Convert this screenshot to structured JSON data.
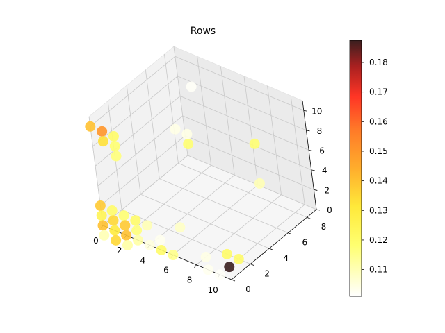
{
  "chart_data": {
    "type": "scatter",
    "title": "Rows",
    "xlabel": "",
    "ylabel": "",
    "zlabel": "",
    "xlim": [
      0,
      11
    ],
    "ylim": [
      0,
      9
    ],
    "zlim": [
      0,
      11
    ],
    "x_ticks": [
      "0",
      "2",
      "4",
      "6",
      "8",
      "10"
    ],
    "y_ticks": [
      "0",
      "2",
      "4",
      "6",
      "8"
    ],
    "z_ticks": [
      "0",
      "2",
      "4",
      "6",
      "8",
      "10"
    ],
    "grid": true,
    "colormap": "hot_r",
    "colorbar": {
      "min": 0.101,
      "max": 0.1875,
      "ticks": [
        "0.11",
        "0.12",
        "0.13",
        "0.14",
        "0.15",
        "0.16",
        "0.17",
        "0.18"
      ]
    },
    "points": [
      {
        "x": 0,
        "y": 0,
        "z": 10,
        "c": 0.14
      },
      {
        "x": 1,
        "y": 0,
        "z": 10,
        "c": 0.15
      },
      {
        "x": 1,
        "y": 0,
        "z": 9,
        "c": 0.133
      },
      {
        "x": 2,
        "y": 0,
        "z": 10,
        "c": 0.12
      },
      {
        "x": 2,
        "y": 0,
        "z": 9,
        "c": 0.118
      },
      {
        "x": 2,
        "y": 0,
        "z": 8,
        "c": 0.117
      },
      {
        "x": 0,
        "y": 0,
        "z": 2,
        "c": 0.138
      },
      {
        "x": 0,
        "y": 0,
        "z": 1,
        "c": 0.125
      },
      {
        "x": 0,
        "y": 0,
        "z": 0,
        "c": 0.14
      },
      {
        "x": 1,
        "y": 0,
        "z": 2,
        "c": 0.12
      },
      {
        "x": 1,
        "y": 0,
        "z": 1,
        "c": 0.135
      },
      {
        "x": 1,
        "y": 0,
        "z": 0,
        "c": 0.13
      },
      {
        "x": 2,
        "y": 0,
        "z": 2,
        "c": 0.118
      },
      {
        "x": 2,
        "y": 0,
        "z": 1,
        "c": 0.138
      },
      {
        "x": 2,
        "y": 0,
        "z": 0,
        "c": 0.14
      },
      {
        "x": 3,
        "y": 0,
        "z": 2,
        "c": 0.12
      },
      {
        "x": 3,
        "y": 0,
        "z": 1,
        "c": 0.117
      },
      {
        "x": 3,
        "y": 0,
        "z": 0,
        "c": 0.112
      },
      {
        "x": 0,
        "y": 0,
        "z": -1,
        "c": 0.11
      },
      {
        "x": 1,
        "y": 0,
        "z": -1,
        "c": 0.135
      },
      {
        "x": 2,
        "y": 0,
        "z": -1,
        "c": 0.112
      },
      {
        "x": 4,
        "y": 0,
        "z": 2,
        "c": 0.11
      },
      {
        "x": 5,
        "y": 0,
        "z": 1,
        "c": 0.103
      },
      {
        "x": 4,
        "y": 0,
        "z": 0,
        "c": 0.105
      },
      {
        "x": 5,
        "y": 0,
        "z": 0,
        "c": 0.12
      },
      {
        "x": 6,
        "y": 0,
        "z": 0,
        "c": 0.115
      },
      {
        "x": 6,
        "y": 1,
        "z": 2,
        "c": 0.108
      },
      {
        "x": 8,
        "y": 1,
        "z": 0,
        "c": 0.104
      },
      {
        "x": 3,
        "y": 7,
        "z": 10,
        "c": 0.102
      },
      {
        "x": 2,
        "y": 6,
        "z": 6,
        "c": 0.104
      },
      {
        "x": 3,
        "y": 6,
        "z": 6,
        "c": 0.104
      },
      {
        "x": 3,
        "y": 6,
        "z": 5,
        "c": 0.118
      },
      {
        "x": 9,
        "y": 6,
        "z": 8,
        "c": 0.118
      },
      {
        "x": 9,
        "y": 6,
        "z": 4,
        "c": 0.11
      },
      {
        "x": 9,
        "y": 2,
        "z": 0,
        "c": 0.12
      },
      {
        "x": 10,
        "y": 2,
        "z": 0,
        "c": 0.12
      },
      {
        "x": 10,
        "y": 1,
        "z": 0,
        "c": 0.1875
      },
      {
        "x": 9,
        "y": 0,
        "z": 0,
        "c": 0.103
      },
      {
        "x": 10,
        "y": 0,
        "z": 0,
        "c": 0.102
      }
    ]
  }
}
